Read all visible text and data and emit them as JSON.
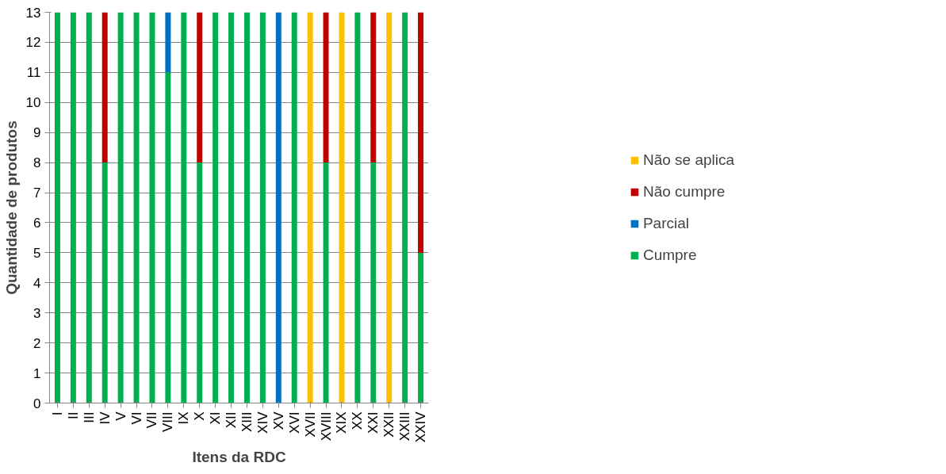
{
  "chart_data": {
    "type": "bar",
    "stacked": true,
    "xlabel": "Itens da RDC",
    "ylabel": "Quantidade de produtos",
    "categories": [
      "I",
      "II",
      "III",
      "IV",
      "V",
      "VI",
      "VII",
      "VIII",
      "IX",
      "X",
      "XI",
      "XII",
      "XIII",
      "XIV",
      "XV",
      "XVI",
      "XVII",
      "XVIII",
      "XIX",
      "XX",
      "XXI",
      "XXII",
      "XXIII",
      "XXIV"
    ],
    "series": [
      {
        "name": "Cumpre",
        "color": "#00b050",
        "values": [
          13,
          13,
          13,
          8,
          13,
          13,
          13,
          11,
          13,
          8,
          13,
          13,
          13,
          13,
          0,
          13,
          0,
          8,
          0,
          13,
          8,
          0,
          13,
          5
        ]
      },
      {
        "name": "Parcial",
        "color": "#0070c0",
        "values": [
          0,
          0,
          0,
          0,
          0,
          0,
          0,
          2,
          0,
          0,
          0,
          0,
          0,
          0,
          13,
          0,
          0,
          0,
          0,
          0,
          0,
          0,
          0,
          0
        ]
      },
      {
        "name": "Não cumpre",
        "color": "#c00000",
        "values": [
          0,
          0,
          0,
          5,
          0,
          0,
          0,
          0,
          0,
          5,
          0,
          0,
          0,
          0,
          0,
          0,
          0,
          5,
          0,
          0,
          5,
          0,
          0,
          8
        ]
      },
      {
        "name": "Não se aplica",
        "color": "#ffc000",
        "values": [
          0,
          0,
          0,
          0,
          0,
          0,
          0,
          0,
          0,
          0,
          0,
          0,
          0,
          0,
          0,
          0,
          13,
          0,
          13,
          0,
          0,
          13,
          0,
          0
        ]
      }
    ],
    "ylim": [
      0,
      13
    ],
    "yticks": [
      0,
      1,
      2,
      3,
      4,
      5,
      6,
      7,
      8,
      9,
      10,
      11,
      12,
      13
    ],
    "grid": "y",
    "legend": "right"
  }
}
